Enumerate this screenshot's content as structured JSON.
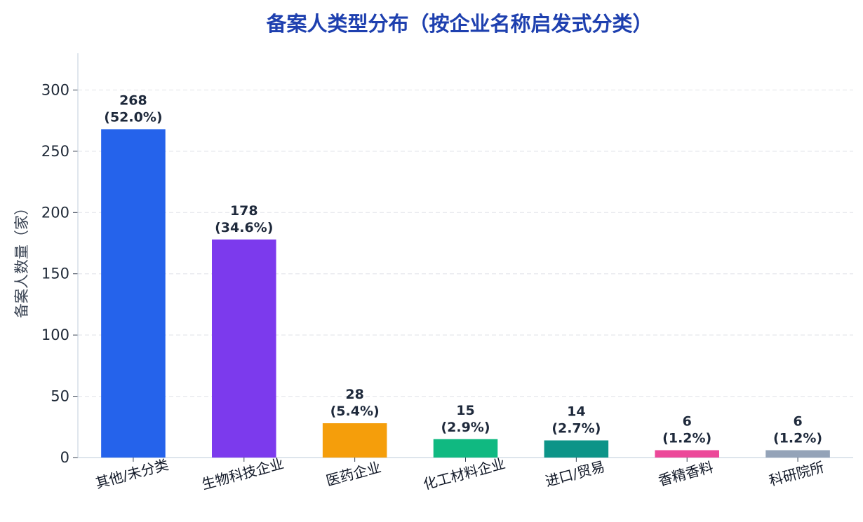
{
  "chart_data": {
    "type": "bar",
    "title": "备案人类型分布（按企业名称启发式分类）",
    "xlabel": "",
    "ylabel": "备案人数量（家）",
    "ylim": [
      0,
      330
    ],
    "yticks": [
      0,
      50,
      100,
      150,
      200,
      250,
      300
    ],
    "grid": true,
    "legend": "none",
    "categories": [
      "其他/未分类",
      "生物科技企业",
      "医药企业",
      "化工材料企业",
      "进口/贸易",
      "香精香料",
      "科研院所"
    ],
    "values": [
      268,
      178,
      28,
      15,
      14,
      6,
      6
    ],
    "percent_labels": [
      "(52.0%)",
      "(34.6%)",
      "(5.4%)",
      "(2.9%)",
      "(2.7%)",
      "(1.2%)",
      "(1.2%)"
    ],
    "colors": [
      "#2563eb",
      "#7c3aed",
      "#f59e0b",
      "#10b981",
      "#0d9488",
      "#ec4899",
      "#94a3b8"
    ],
    "title_color": "#1e40af",
    "grid_color": "#e5e7eb",
    "axis_color": "#cbd5e1"
  }
}
